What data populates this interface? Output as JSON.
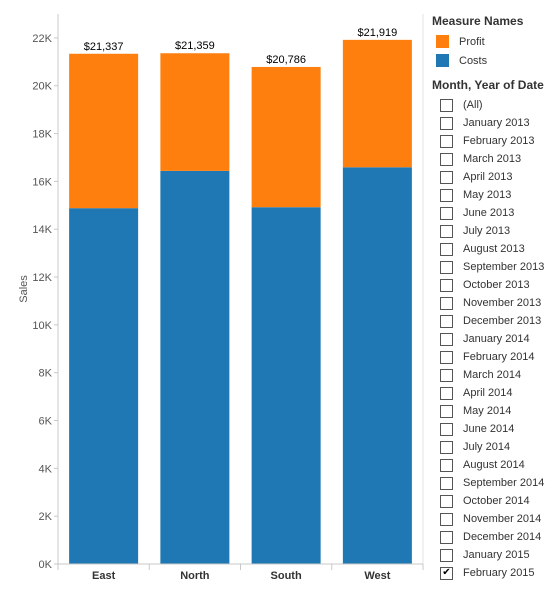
{
  "chart_data": {
    "type": "bar",
    "stacked": true,
    "categories": [
      "East",
      "North",
      "South",
      "West"
    ],
    "series": [
      {
        "name": "Costs",
        "color": "#1f77b4",
        "values": [
          14880,
          16440,
          14920,
          16590
        ]
      },
      {
        "name": "Profit",
        "color": "#ff7f0e",
        "values": [
          6457,
          4919,
          5866,
          5329
        ]
      }
    ],
    "totals": [
      21337,
      21359,
      20786,
      21919
    ],
    "total_labels": [
      "$21,337",
      "$21,359",
      "$20,786",
      "$21,919"
    ],
    "ylabel": "Sales",
    "ylim": [
      0,
      23000
    ],
    "yticks": [
      0,
      2000,
      4000,
      6000,
      8000,
      10000,
      12000,
      14000,
      16000,
      18000,
      20000,
      22000
    ],
    "ytick_labels": [
      "0K",
      "2K",
      "4K",
      "6K",
      "8K",
      "10K",
      "12K",
      "14K",
      "16K",
      "18K",
      "20K",
      "22K"
    ],
    "grid": false
  },
  "legend": {
    "title": "Measure Names",
    "items": [
      {
        "label": "Profit",
        "color": "#ff7f0e"
      },
      {
        "label": "Costs",
        "color": "#1f77b4"
      }
    ]
  },
  "filter": {
    "title": "Month, Year of Date",
    "items": [
      {
        "label": "(All)",
        "checked": false
      },
      {
        "label": "January 2013",
        "checked": false
      },
      {
        "label": "February 2013",
        "checked": false
      },
      {
        "label": "March 2013",
        "checked": false
      },
      {
        "label": "April 2013",
        "checked": false
      },
      {
        "label": "May 2013",
        "checked": false
      },
      {
        "label": "June 2013",
        "checked": false
      },
      {
        "label": "July 2013",
        "checked": false
      },
      {
        "label": "August 2013",
        "checked": false
      },
      {
        "label": "September 2013",
        "checked": false
      },
      {
        "label": "October 2013",
        "checked": false
      },
      {
        "label": "November 2013",
        "checked": false
      },
      {
        "label": "December 2013",
        "checked": false
      },
      {
        "label": "January 2014",
        "checked": false
      },
      {
        "label": "February 2014",
        "checked": false
      },
      {
        "label": "March 2014",
        "checked": false
      },
      {
        "label": "April 2014",
        "checked": false
      },
      {
        "label": "May 2014",
        "checked": false
      },
      {
        "label": "June 2014",
        "checked": false
      },
      {
        "label": "July 2014",
        "checked": false
      },
      {
        "label": "August 2014",
        "checked": false
      },
      {
        "label": "September 2014",
        "checked": false
      },
      {
        "label": "October 2014",
        "checked": false
      },
      {
        "label": "November 2014",
        "checked": false
      },
      {
        "label": "December 2014",
        "checked": false
      },
      {
        "label": "January 2015",
        "checked": false
      },
      {
        "label": "February 2015",
        "checked": true
      }
    ]
  }
}
